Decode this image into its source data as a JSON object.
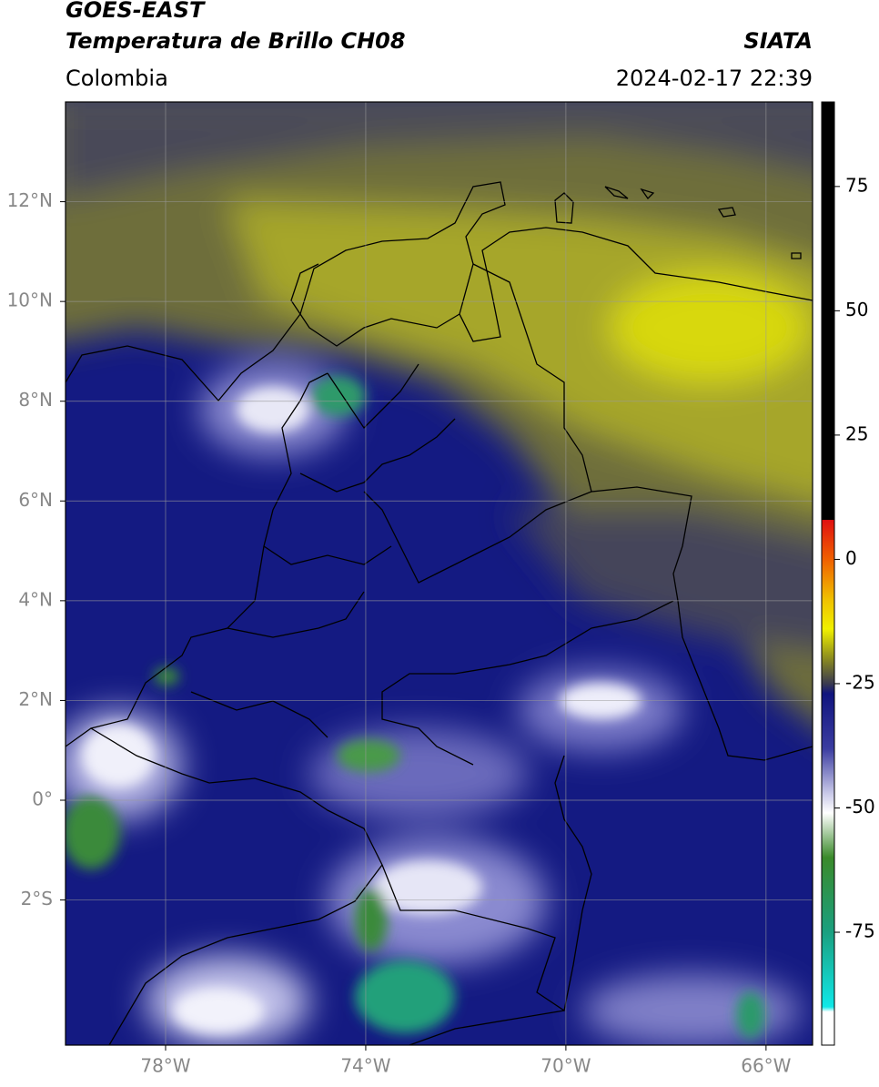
{
  "header": {
    "title": "GOES-EAST",
    "subtitle": "Temperatura de Brillo CH08",
    "region": "Colombia",
    "source": "SIATA",
    "datetime": "2024-02-17 22:39"
  },
  "map": {
    "xlim": [
      -80,
      -65.07
    ],
    "ylim": [
      -4.91,
      14
    ],
    "xticks": [
      {
        "value": -78,
        "label": "78°W"
      },
      {
        "value": -74,
        "label": "74°W"
      },
      {
        "value": -70,
        "label": "70°W"
      },
      {
        "value": -66,
        "label": "66°W"
      }
    ],
    "yticks": [
      {
        "value": -2,
        "label": "2°S"
      },
      {
        "value": 0,
        "label": "0°"
      },
      {
        "value": 2,
        "label": "2°N"
      },
      {
        "value": 4,
        "label": "4°N"
      },
      {
        "value": 6,
        "label": "6°N"
      },
      {
        "value": 8,
        "label": "8°N"
      },
      {
        "value": 10,
        "label": "10°N"
      },
      {
        "value": 12,
        "label": "12°N"
      }
    ],
    "grid": true
  },
  "colorbar": {
    "lim": [
      -97.7,
      92
    ],
    "ticks": [
      75,
      50,
      25,
      0,
      -25,
      -50,
      -75
    ],
    "stops": [
      {
        "value": 92,
        "color": "#000000"
      },
      {
        "value": 8,
        "color": "#000000"
      },
      {
        "value": 7.9,
        "color": "#e01010"
      },
      {
        "value": 0,
        "color": "#f06000"
      },
      {
        "value": -8,
        "color": "#f0c000"
      },
      {
        "value": -14,
        "color": "#f0f000"
      },
      {
        "value": -20,
        "color": "#8a8a20"
      },
      {
        "value": -25,
        "color": "#3a3a50"
      },
      {
        "value": -27,
        "color": "#10147e"
      },
      {
        "value": -38,
        "color": "#3a3ca0"
      },
      {
        "value": -47,
        "color": "#c8c8e8"
      },
      {
        "value": -51,
        "color": "#ffffff"
      },
      {
        "value": -60,
        "color": "#3a8a2a"
      },
      {
        "value": -75,
        "color": "#1aa080"
      },
      {
        "value": -90,
        "color": "#10e8e8"
      },
      {
        "value": -91,
        "color": "#ffffff"
      },
      {
        "value": -97.7,
        "color": "#ffffff"
      }
    ]
  }
}
